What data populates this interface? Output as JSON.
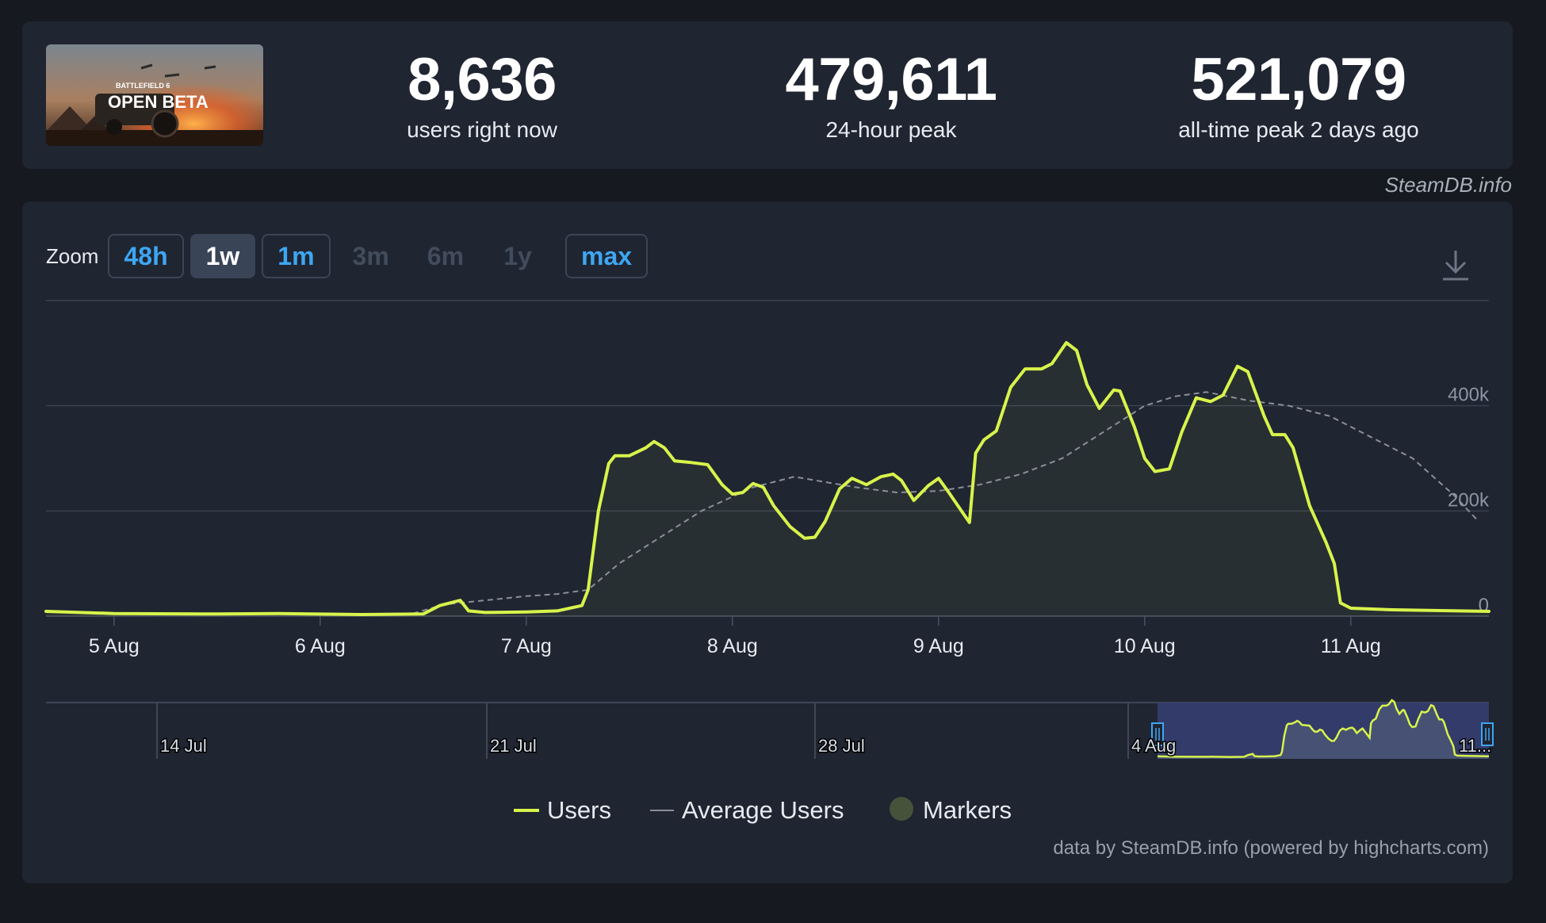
{
  "header": {
    "game_image_text": [
      "BATTLEFIELD 6",
      "OPEN BETA"
    ],
    "stats": [
      {
        "value": "8,636",
        "label": "users right now"
      },
      {
        "value": "479,611",
        "label": "24-hour peak"
      },
      {
        "value": "521,079",
        "label": "all-time peak 2 days ago"
      }
    ],
    "credit": "SteamDB.info"
  },
  "toolbar": {
    "zoom_label": "Zoom",
    "buttons": [
      {
        "label": "48h",
        "state": "outlined"
      },
      {
        "label": "1w",
        "state": "active"
      },
      {
        "label": "1m",
        "state": "outlined"
      },
      {
        "label": "3m",
        "state": "disabled"
      },
      {
        "label": "6m",
        "state": "disabled"
      },
      {
        "label": "1y",
        "state": "disabled"
      },
      {
        "label": "max",
        "state": "outlined"
      }
    ],
    "download_icon": "download-icon"
  },
  "colors": {
    "users_line": "#d8f34b",
    "average_line": "#8a8f99",
    "markers": "#46533a",
    "accent_blue": "#3ea6f2",
    "navigator_band": "#373f74"
  },
  "chart_data": {
    "type": "line",
    "x_unit": "days of August (day.fraction)",
    "xlim": [
      4.67,
      11.67
    ],
    "ylim": [
      0,
      600000
    ],
    "y_ticks": [
      {
        "value": 0,
        "label": "0"
      },
      {
        "value": 200000,
        "label": "200k"
      },
      {
        "value": 400000,
        "label": "400k"
      }
    ],
    "x_ticks": [
      {
        "value": 5,
        "label": "5 Aug"
      },
      {
        "value": 6,
        "label": "6 Aug"
      },
      {
        "value": 7,
        "label": "7 Aug"
      },
      {
        "value": 8,
        "label": "8 Aug"
      },
      {
        "value": 9,
        "label": "9 Aug"
      },
      {
        "value": 10,
        "label": "10 Aug"
      },
      {
        "value": 11,
        "label": "11 Aug"
      }
    ],
    "grid": true,
    "series": [
      {
        "name": "Users",
        "points": [
          [
            4.67,
            9000
          ],
          [
            5.0,
            5000
          ],
          [
            5.5,
            4000
          ],
          [
            5.8,
            5000
          ],
          [
            6.2,
            3000
          ],
          [
            6.5,
            4000
          ],
          [
            6.58,
            20000
          ],
          [
            6.68,
            30000
          ],
          [
            6.72,
            10000
          ],
          [
            6.8,
            7000
          ],
          [
            7.0,
            8000
          ],
          [
            7.15,
            10000
          ],
          [
            7.27,
            20000
          ],
          [
            7.3,
            50000
          ],
          [
            7.35,
            200000
          ],
          [
            7.4,
            290000
          ],
          [
            7.43,
            305000
          ],
          [
            7.5,
            305000
          ],
          [
            7.58,
            320000
          ],
          [
            7.62,
            332000
          ],
          [
            7.67,
            320000
          ],
          [
            7.72,
            295000
          ],
          [
            7.8,
            292000
          ],
          [
            7.88,
            288000
          ],
          [
            7.95,
            250000
          ],
          [
            8.0,
            232000
          ],
          [
            8.05,
            235000
          ],
          [
            8.1,
            252000
          ],
          [
            8.15,
            245000
          ],
          [
            8.2,
            210000
          ],
          [
            8.28,
            170000
          ],
          [
            8.35,
            148000
          ],
          [
            8.4,
            150000
          ],
          [
            8.45,
            180000
          ],
          [
            8.52,
            242000
          ],
          [
            8.58,
            262000
          ],
          [
            8.65,
            250000
          ],
          [
            8.72,
            265000
          ],
          [
            8.78,
            270000
          ],
          [
            8.82,
            258000
          ],
          [
            8.88,
            220000
          ],
          [
            8.95,
            248000
          ],
          [
            9.0,
            262000
          ],
          [
            9.05,
            235000
          ],
          [
            9.12,
            195000
          ],
          [
            9.15,
            178000
          ],
          [
            9.18,
            310000
          ],
          [
            9.22,
            335000
          ],
          [
            9.28,
            352000
          ],
          [
            9.35,
            435000
          ],
          [
            9.42,
            470000
          ],
          [
            9.5,
            470000
          ],
          [
            9.55,
            480000
          ],
          [
            9.62,
            520000
          ],
          [
            9.67,
            505000
          ],
          [
            9.72,
            440000
          ],
          [
            9.78,
            395000
          ],
          [
            9.85,
            430000
          ],
          [
            9.88,
            428000
          ],
          [
            9.95,
            360000
          ],
          [
            10.0,
            300000
          ],
          [
            10.05,
            275000
          ],
          [
            10.12,
            280000
          ],
          [
            10.18,
            350000
          ],
          [
            10.25,
            415000
          ],
          [
            10.32,
            408000
          ],
          [
            10.38,
            420000
          ],
          [
            10.45,
            475000
          ],
          [
            10.5,
            465000
          ],
          [
            10.58,
            380000
          ],
          [
            10.62,
            345000
          ],
          [
            10.68,
            345000
          ],
          [
            10.72,
            320000
          ],
          [
            10.8,
            210000
          ],
          [
            10.88,
            140000
          ],
          [
            10.92,
            100000
          ],
          [
            10.95,
            25000
          ],
          [
            11.0,
            15000
          ],
          [
            11.2,
            12000
          ],
          [
            11.67,
            9000
          ]
        ]
      },
      {
        "name": "Average Users",
        "points": [
          [
            6.45,
            5000
          ],
          [
            6.6,
            22000
          ],
          [
            6.8,
            30000
          ],
          [
            7.0,
            38000
          ],
          [
            7.15,
            42000
          ],
          [
            7.3,
            50000
          ],
          [
            7.45,
            100000
          ],
          [
            7.65,
            150000
          ],
          [
            7.85,
            200000
          ],
          [
            8.1,
            245000
          ],
          [
            8.3,
            265000
          ],
          [
            8.45,
            255000
          ],
          [
            8.6,
            245000
          ],
          [
            8.8,
            235000
          ],
          [
            9.0,
            238000
          ],
          [
            9.2,
            250000
          ],
          [
            9.4,
            270000
          ],
          [
            9.6,
            300000
          ],
          [
            9.8,
            350000
          ],
          [
            10.0,
            400000
          ],
          [
            10.15,
            418000
          ],
          [
            10.3,
            426000
          ],
          [
            10.5,
            410000
          ],
          [
            10.7,
            400000
          ],
          [
            10.9,
            380000
          ],
          [
            11.1,
            340000
          ],
          [
            11.3,
            300000
          ],
          [
            11.5,
            230000
          ],
          [
            11.62,
            180000
          ]
        ]
      }
    ],
    "legend": {
      "placement": "bottom-center",
      "entries": [
        {
          "label": "Users",
          "symbol": "line"
        },
        {
          "label": "Average Users",
          "symbol": "thin-line"
        },
        {
          "label": "Markers",
          "symbol": "circle"
        }
      ]
    },
    "navigator": {
      "labels": [
        "14 Jul",
        "21 Jul",
        "28 Jul",
        "4 Aug",
        "11..."
      ],
      "selected_range": "4 Aug – 11 Aug"
    },
    "credits": "data by SteamDB.info (powered by highcharts.com)"
  }
}
